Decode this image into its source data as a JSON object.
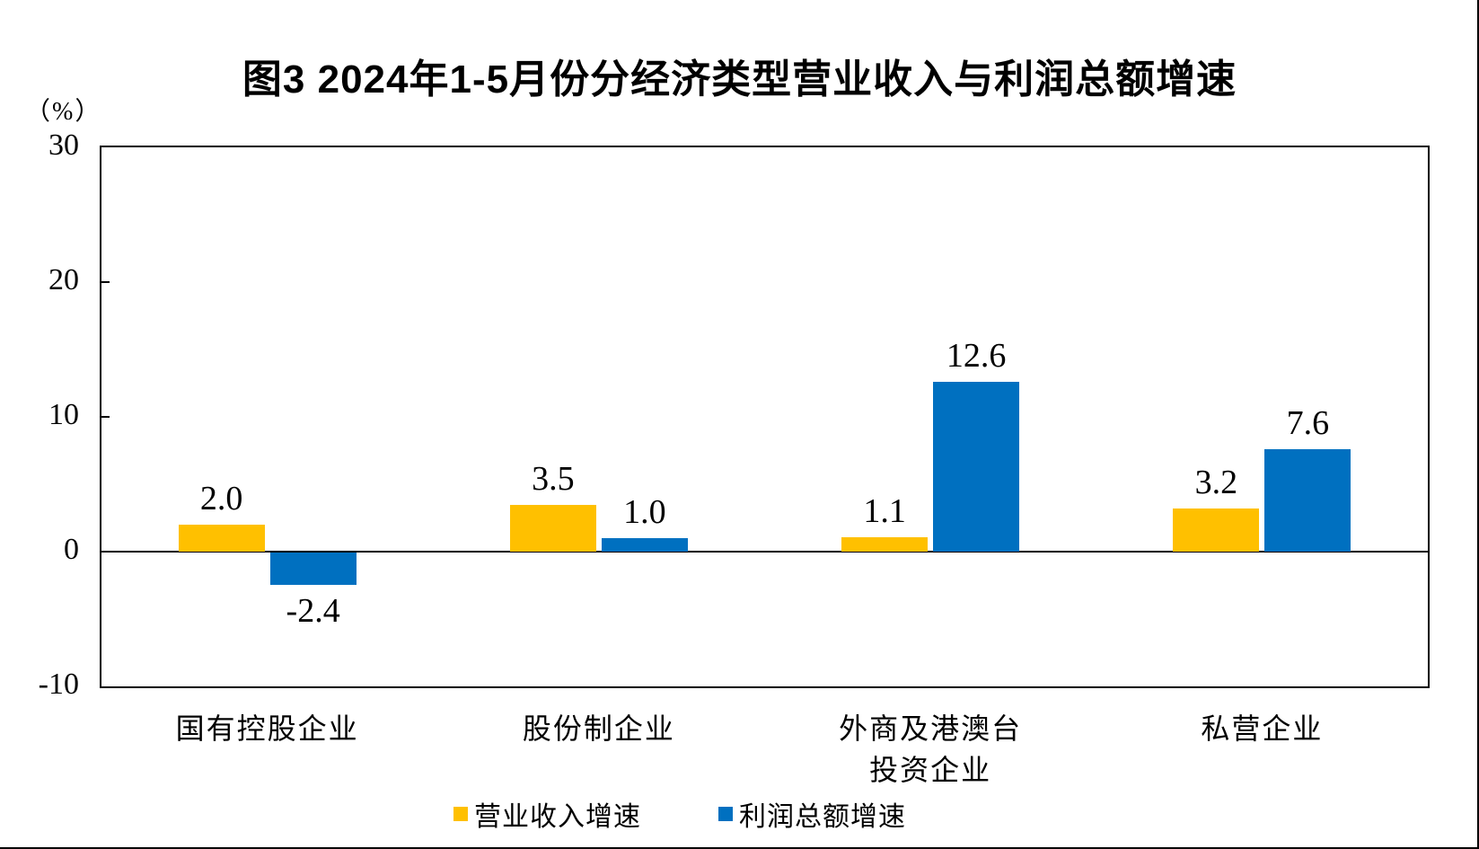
{
  "chart_data": {
    "type": "bar",
    "title": "图3 2024年1-5月份分经济类型营业收入与利润总额增速",
    "ylabel": "（%）",
    "xlabel": "",
    "categories": [
      "国有控股企业",
      "股份制企业",
      "外商及港澳台\n投资企业",
      "私营企业"
    ],
    "series": [
      {
        "name": "营业收入增速",
        "color": "#FFC000",
        "values": [
          2.0,
          3.5,
          1.1,
          3.2
        ],
        "labels": [
          "2.0",
          "3.5",
          "1.1",
          "3.2"
        ]
      },
      {
        "name": "利润总额增速",
        "color": "#0070C0",
        "values": [
          -2.4,
          1.0,
          12.6,
          7.6
        ],
        "labels": [
          "-2.4",
          "1.0",
          "12.6",
          "7.6"
        ]
      }
    ],
    "ylim": [
      -10,
      30
    ],
    "yticks": [
      30,
      20,
      10,
      0,
      -10
    ],
    "grid": false,
    "legend_position": "bottom"
  },
  "colors": {
    "axis": "#000000",
    "background": "#ffffff",
    "revenue_bar": "#FFC000",
    "profit_bar": "#0070C0"
  }
}
